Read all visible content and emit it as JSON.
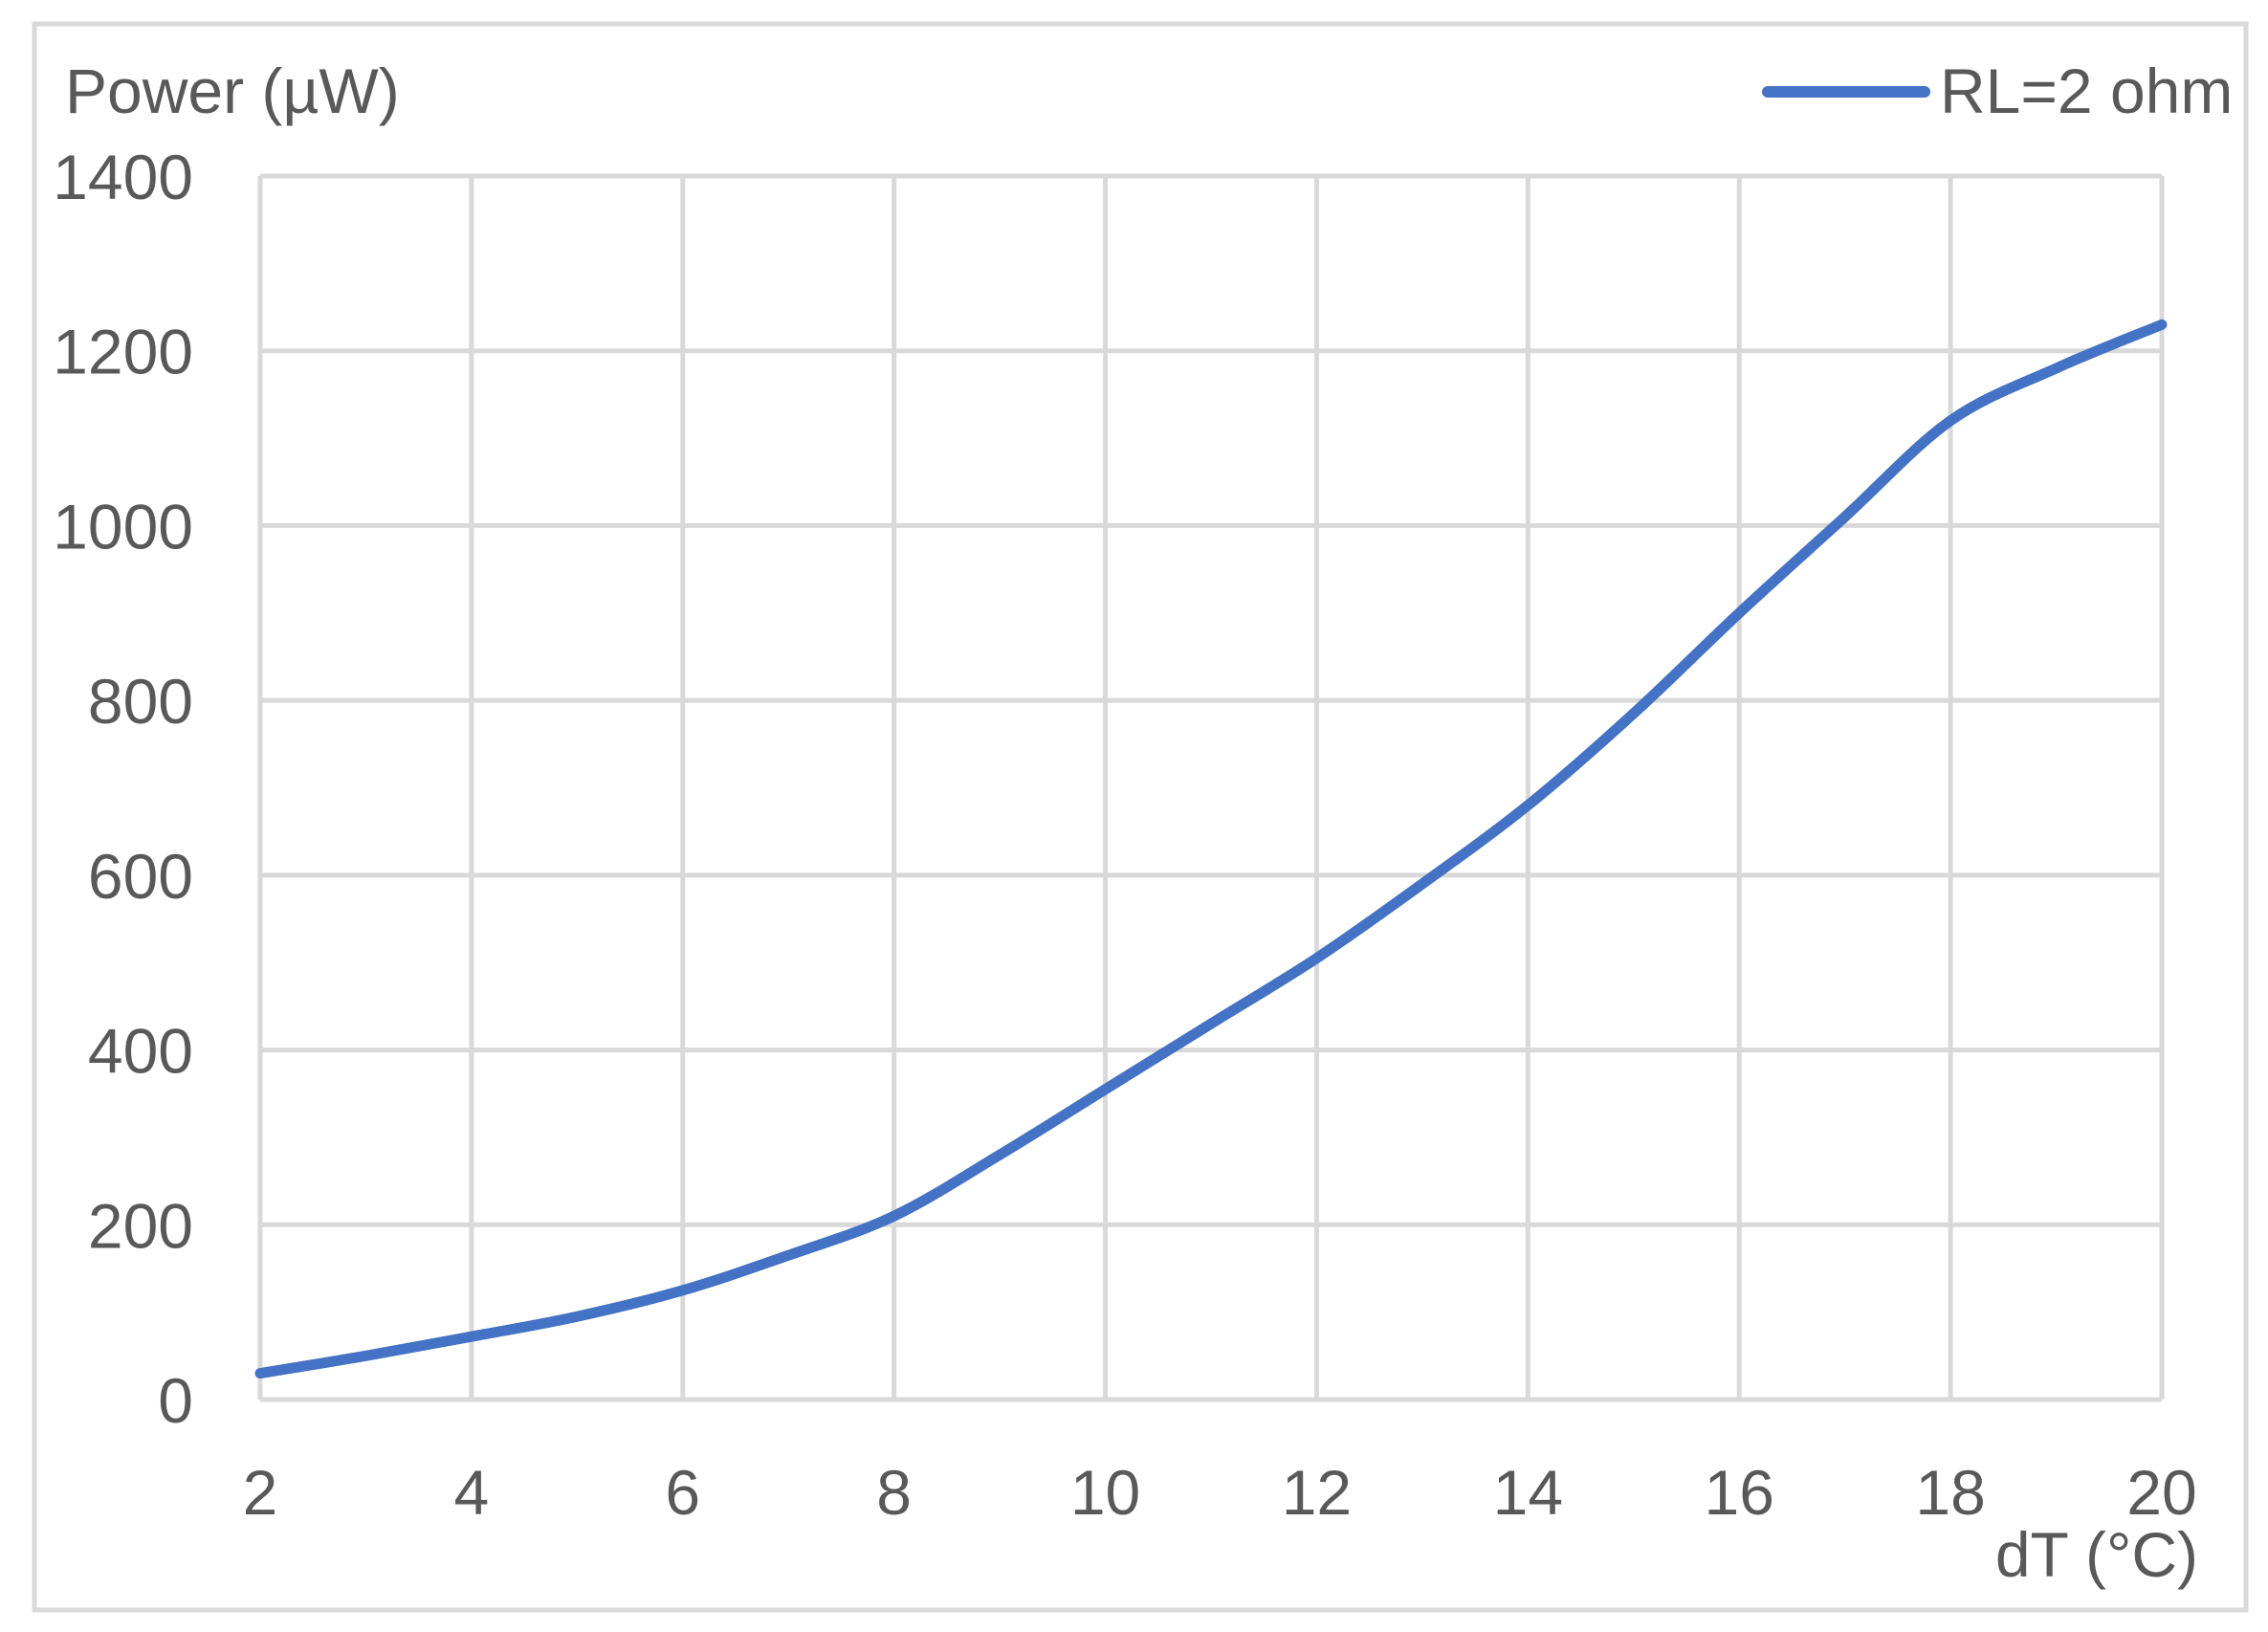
{
  "colors": {
    "series_line": "#4472C4",
    "grid": "#D9D9D9",
    "text": "#595959",
    "frame": "#D9D9D9",
    "background": "#FFFFFF"
  },
  "chart_data": {
    "type": "line",
    "title": "",
    "xlabel": "dT (°C)",
    "ylabel": "Power (µW)",
    "xlim": [
      2,
      20
    ],
    "ylim": [
      0,
      1400
    ],
    "x_ticks": [
      2,
      4,
      6,
      8,
      10,
      12,
      14,
      16,
      18,
      20
    ],
    "y_ticks": [
      0,
      200,
      400,
      600,
      800,
      1000,
      1200,
      1400
    ],
    "x_tick_labels": [
      "2",
      "4",
      "6",
      "8",
      "10",
      "12",
      "14",
      "16",
      "18",
      "20"
    ],
    "y_tick_labels": [
      "0",
      "200",
      "400",
      "600",
      "800",
      "1000",
      "1200",
      "1400"
    ],
    "grid": true,
    "legend_position": "top-right",
    "series": [
      {
        "name": "RL=2 ohm",
        "x": [
          2,
          3,
          4,
          5,
          6,
          7,
          8,
          9,
          10,
          11,
          12,
          13,
          14,
          15,
          16,
          17,
          18,
          19,
          20
        ],
        "y": [
          30,
          50,
          72,
          95,
          125,
          165,
          210,
          280,
          355,
          430,
          505,
          590,
          680,
          785,
          900,
          1010,
          1120,
          1180,
          1230
        ]
      }
    ]
  }
}
